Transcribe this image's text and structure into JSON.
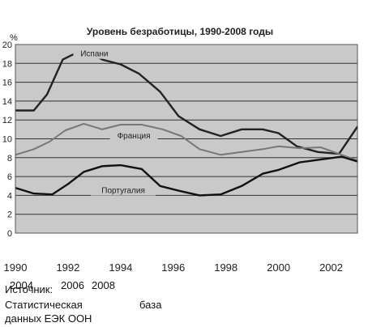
{
  "chart_data": {
    "type": "line",
    "title": "Уровень безработицы, 1990-2008 годы",
    "ylabel": "%",
    "xlabel": "",
    "ylim": [
      0,
      20
    ],
    "yticks": [
      0,
      2,
      4,
      6,
      8,
      10,
      12,
      14,
      16,
      18,
      20
    ],
    "xlim": [
      1990,
      2003
    ],
    "xticks": [
      "1990",
      "1992",
      "1994",
      "1996",
      "1998",
      "2000",
      "2002"
    ],
    "grid": true,
    "legend": "none",
    "series": [
      {
        "name": "Испани",
        "color": "#222222",
        "x": [
          1990,
          1990.7,
          1991.2,
          1991.8,
          1992.6,
          1993.3,
          1994,
          1994.7,
          1995.5,
          1996.2,
          1997,
          1997.8,
          1998.6,
          1999.4,
          2000,
          2000.7,
          2001.5,
          2002.3,
          2003
        ],
        "values": [
          13.0,
          13.0,
          14.7,
          18.4,
          19.5,
          18.4,
          17.9,
          16.9,
          15.0,
          12.4,
          11.0,
          10.3,
          11.0,
          11.0,
          10.6,
          9.2,
          8.6,
          8.4,
          11.3
        ]
      },
      {
        "name": "Франция",
        "color": "#777777",
        "x": [
          1990,
          1990.7,
          1991.3,
          1991.9,
          1992.6,
          1993.3,
          1994,
          1994.8,
          1995.6,
          1996.3,
          1997,
          1997.8,
          1998.6,
          1999.4,
          2000,
          2000.8,
          2001.6,
          2002.4,
          2003
        ],
        "values": [
          8.3,
          8.9,
          9.7,
          10.9,
          11.6,
          11.0,
          11.5,
          11.5,
          11.0,
          10.3,
          8.9,
          8.3,
          8.6,
          8.9,
          9.2,
          9.0,
          9.1,
          8.3,
          7.7
        ]
      },
      {
        "name": "Португалия",
        "color": "#111111",
        "x": [
          1990,
          1990.7,
          1991.4,
          1992,
          1992.6,
          1993.3,
          1994,
          1994.8,
          1995.5,
          1996.2,
          1997,
          1997.8,
          1998.6,
          1999.4,
          2000,
          2000.8,
          2001.6,
          2002.4,
          2003
        ],
        "values": [
          4.8,
          4.2,
          4.1,
          5.2,
          6.5,
          7.1,
          7.2,
          6.8,
          5.0,
          4.5,
          4.0,
          4.1,
          5.0,
          6.3,
          6.7,
          7.5,
          7.8,
          8.1,
          7.6
        ]
      }
    ],
    "annotations": [
      {
        "text": "Испани",
        "x": 1993.0,
        "y": 19.0
      },
      {
        "text": "Франция",
        "x": 1994.5,
        "y": 10.3
      },
      {
        "text": "Португалия",
        "x": 1994.1,
        "y": 4.5
      }
    ]
  },
  "source": {
    "label": "Источник:",
    "line1": "Статистическая",
    "line1b": "база",
    "line2": "данных ЕЭК ООН",
    "overlap_years": [
      "2004",
      "2006",
      "2008"
    ]
  }
}
